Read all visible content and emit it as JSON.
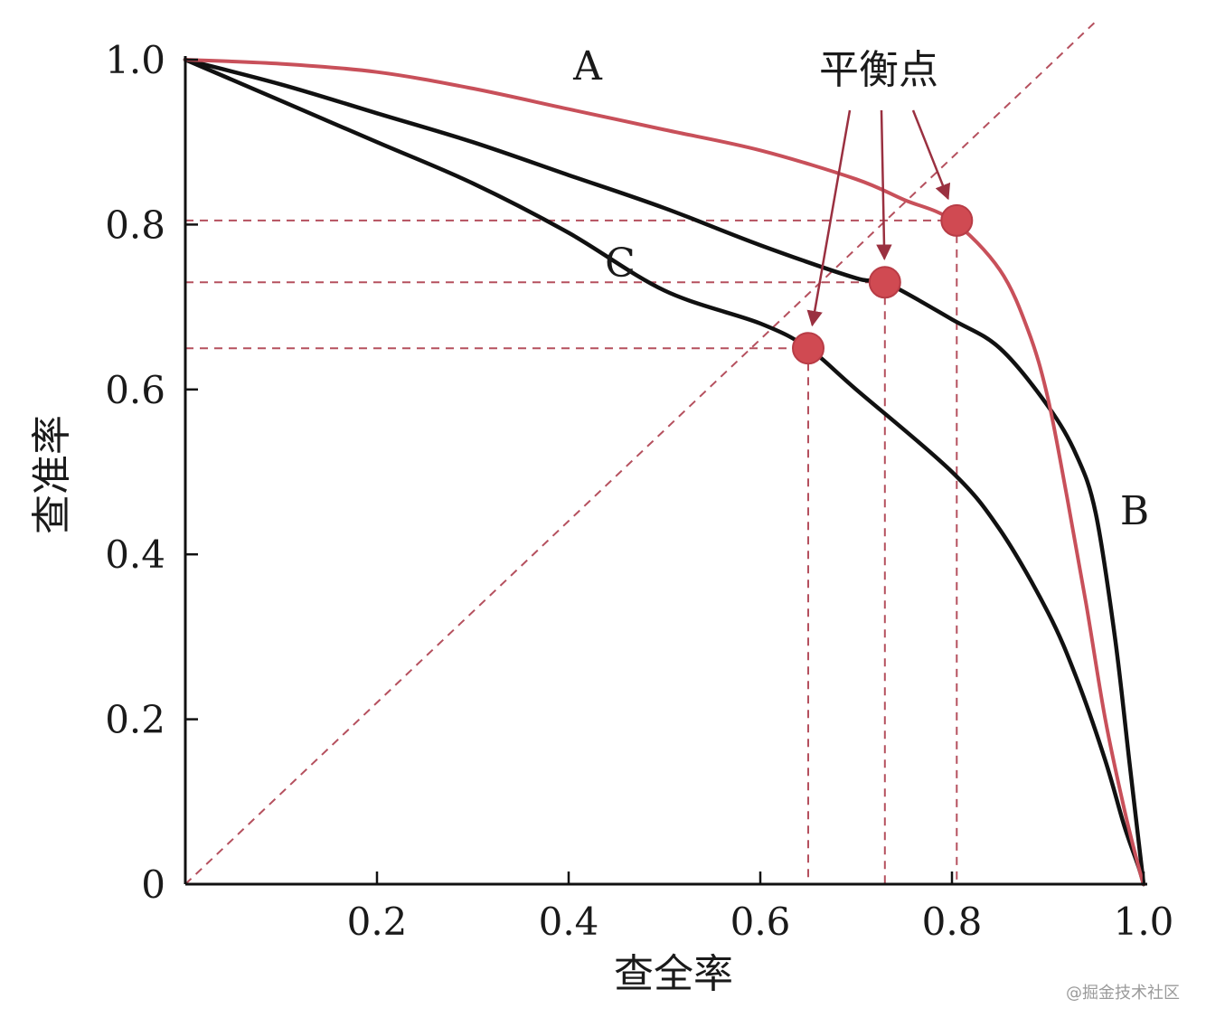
{
  "chart_data": {
    "type": "line",
    "xlabel": "查全率",
    "ylabel": "查准率",
    "xlim": [
      0,
      1
    ],
    "ylim": [
      0,
      1
    ],
    "x_ticks": [
      "0.2",
      "0.4",
      "0.6",
      "0.8",
      "1.0"
    ],
    "y_ticks": [
      "0",
      "0.2",
      "0.4",
      "0.6",
      "0.8",
      "1.0"
    ],
    "annotation": "平衡点",
    "series": [
      {
        "name": "A",
        "color": "#c8505a",
        "points": [
          [
            0,
            1.0
          ],
          [
            0.1,
            0.995
          ],
          [
            0.2,
            0.985
          ],
          [
            0.3,
            0.965
          ],
          [
            0.4,
            0.94
          ],
          [
            0.5,
            0.915
          ],
          [
            0.6,
            0.89
          ],
          [
            0.7,
            0.855
          ],
          [
            0.75,
            0.83
          ],
          [
            0.8,
            0.805
          ],
          [
            0.85,
            0.745
          ],
          [
            0.88,
            0.67
          ],
          [
            0.9,
            0.59
          ],
          [
            0.92,
            0.47
          ],
          [
            0.94,
            0.34
          ],
          [
            0.96,
            0.2
          ],
          [
            0.98,
            0.09
          ],
          [
            0.995,
            0.02
          ],
          [
            1.0,
            0.0
          ]
        ]
      },
      {
        "name": "B",
        "color": "#111111",
        "points": [
          [
            0,
            1.0
          ],
          [
            0.1,
            0.97
          ],
          [
            0.2,
            0.935
          ],
          [
            0.3,
            0.9
          ],
          [
            0.4,
            0.86
          ],
          [
            0.5,
            0.82
          ],
          [
            0.6,
            0.775
          ],
          [
            0.7,
            0.735
          ],
          [
            0.73,
            0.73
          ],
          [
            0.8,
            0.685
          ],
          [
            0.85,
            0.65
          ],
          [
            0.9,
            0.58
          ],
          [
            0.93,
            0.52
          ],
          [
            0.95,
            0.45
          ],
          [
            0.97,
            0.3
          ],
          [
            0.985,
            0.15
          ],
          [
            0.995,
            0.05
          ],
          [
            1.0,
            0.0
          ]
        ]
      },
      {
        "name": "C",
        "color": "#111111",
        "points": [
          [
            0,
            1.0
          ],
          [
            0.1,
            0.95
          ],
          [
            0.2,
            0.9
          ],
          [
            0.3,
            0.85
          ],
          [
            0.4,
            0.79
          ],
          [
            0.5,
            0.72
          ],
          [
            0.6,
            0.68
          ],
          [
            0.65,
            0.65
          ],
          [
            0.7,
            0.6
          ],
          [
            0.8,
            0.5
          ],
          [
            0.85,
            0.43
          ],
          [
            0.9,
            0.33
          ],
          [
            0.93,
            0.25
          ],
          [
            0.96,
            0.15
          ],
          [
            0.98,
            0.07
          ],
          [
            0.995,
            0.02
          ],
          [
            1.0,
            0.0
          ]
        ]
      }
    ],
    "break_even_points": [
      {
        "series": "C",
        "x": 0.65,
        "y": 0.65
      },
      {
        "series": "B",
        "x": 0.73,
        "y": 0.73
      },
      {
        "series": "A",
        "x": 0.805,
        "y": 0.805
      }
    ],
    "reference_line": {
      "from": [
        0,
        0
      ],
      "to": [
        1,
        1
      ],
      "style": "dashed"
    },
    "grid": false,
    "legend": "none"
  },
  "watermark": "@掘金技术社区"
}
